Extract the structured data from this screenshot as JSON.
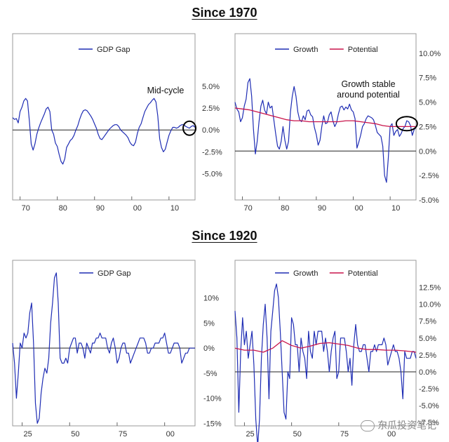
{
  "titles": {
    "top": "Since 1970",
    "bottom": "Since 1920"
  },
  "watermark": "东瓜投资笔记",
  "chart_data": [
    {
      "type": "line",
      "panel": "1970-gap",
      "legend": [
        "GDP Gap"
      ],
      "annotation": "Mid-cycle",
      "x_tick_labels": [
        "70",
        "80",
        "90",
        "00",
        "10"
      ],
      "x_ticks": [
        1970,
        1980,
        1990,
        2000,
        2010
      ],
      "xlim": [
        1968,
        2017
      ],
      "y_tick_labels": [
        "5.0%",
        "2.5%",
        "0.0%",
        "-2.5%",
        "-5.0%"
      ],
      "y_ticks": [
        5.0,
        2.5,
        0.0,
        -2.5,
        -5.0
      ],
      "ylim": [
        -8.0,
        11.0
      ],
      "zero_line": 0.0,
      "highlight": {
        "x": 2015.5,
        "y": 0.2
      },
      "series": [
        {
          "color": "#1f2db4",
          "x": [
            1968,
            1968.5,
            1969,
            1969.5,
            1970,
            1970.5,
            1971,
            1971.5,
            1972,
            1972.5,
            1973,
            1973.5,
            1974,
            1974.5,
            1975,
            1975.5,
            1976,
            1976.5,
            1977,
            1977.5,
            1978,
            1978.5,
            1979,
            1979.5,
            1980,
            1980.5,
            1981,
            1981.5,
            1982,
            1982.5,
            1983,
            1983.5,
            1984,
            1984.5,
            1985,
            1985.5,
            1986,
            1986.5,
            1987,
            1987.5,
            1988,
            1988.5,
            1989,
            1989.5,
            1990,
            1990.5,
            1991,
            1991.5,
            1992,
            1992.5,
            1993,
            1993.5,
            1994,
            1994.5,
            1995,
            1995.5,
            1996,
            1996.5,
            1997,
            1997.5,
            1998,
            1998.5,
            1999,
            1999.5,
            2000,
            2000.5,
            2001,
            2001.5,
            2002,
            2002.5,
            2003,
            2003.5,
            2004,
            2004.5,
            2005,
            2005.5,
            2006,
            2006.5,
            2007,
            2007.5,
            2008,
            2008.5,
            2009,
            2009.5,
            2010,
            2010.5,
            2011,
            2011.5,
            2012,
            2012.5,
            2013,
            2013.5,
            2014,
            2014.5,
            2015,
            2015.5,
            2016,
            2016.5,
            2017
          ],
          "y": [
            1.4,
            1.2,
            1.3,
            0.8,
            2.1,
            2.6,
            3.3,
            3.6,
            3.3,
            1.0,
            -1.6,
            -2.3,
            -1.6,
            -0.5,
            0.2,
            0.8,
            1.3,
            1.8,
            2.4,
            2.6,
            2.1,
            0.0,
            -0.5,
            -1.5,
            -1.9,
            -2.8,
            -3.6,
            -3.9,
            -3.3,
            -2.0,
            -1.6,
            -1.2,
            -1.0,
            -0.6,
            0.0,
            0.5,
            1.2,
            1.8,
            2.2,
            2.3,
            2.2,
            1.9,
            1.6,
            1.2,
            0.7,
            0.2,
            -0.5,
            -1.0,
            -1.1,
            -0.8,
            -0.5,
            -0.2,
            0.1,
            0.3,
            0.5,
            0.6,
            0.6,
            0.4,
            0.0,
            -0.2,
            -0.4,
            -0.6,
            -0.9,
            -1.4,
            -1.7,
            -1.8,
            -1.4,
            -0.4,
            0.3,
            0.7,
            1.4,
            2.1,
            2.5,
            2.9,
            3.1,
            3.4,
            3.6,
            3.2,
            1.6,
            -1.0,
            -2.0,
            -2.5,
            -2.2,
            -1.4,
            -0.6,
            -0.1,
            0.3,
            0.3,
            0.2,
            0.3,
            0.5,
            0.6,
            0.6,
            0.4,
            0.3,
            0.2,
            0.4,
            0.5,
            0.3
          ]
        }
      ]
    },
    {
      "type": "line",
      "panel": "1970-growth",
      "legend": [
        "Growth",
        "Potential"
      ],
      "annotation": "Growth stable\naround potential",
      "x_tick_labels": [
        "70",
        "80",
        "90",
        "00",
        "10"
      ],
      "x_ticks": [
        1970,
        1980,
        1990,
        2000,
        2010
      ],
      "xlim": [
        1968,
        2017
      ],
      "y_tick_labels": [
        "10.0%",
        "7.5%",
        "5.0%",
        "2.5%",
        "0.0%",
        "-2.5%",
        "-5.0%"
      ],
      "y_ticks": [
        10.0,
        7.5,
        5.0,
        2.5,
        0.0,
        -2.5,
        -5.0
      ],
      "ylim": [
        -5.0,
        12.0
      ],
      "zero_line": 0.0,
      "highlight": {
        "x": 2014.5,
        "y": 2.8
      },
      "series": [
        {
          "name": "Growth",
          "color": "#1f2db4",
          "x": [
            1968,
            1968.5,
            1969,
            1969.5,
            1970,
            1970.5,
            1971,
            1971.5,
            1972,
            1972.5,
            1973,
            1973.5,
            1974,
            1974.5,
            1975,
            1975.5,
            1976,
            1976.5,
            1977,
            1977.5,
            1978,
            1978.5,
            1979,
            1979.5,
            1980,
            1980.5,
            1981,
            1981.5,
            1982,
            1982.5,
            1983,
            1983.5,
            1984,
            1984.5,
            1985,
            1985.5,
            1986,
            1986.5,
            1987,
            1987.5,
            1988,
            1988.5,
            1989,
            1989.5,
            1990,
            1990.5,
            1991,
            1991.5,
            1992,
            1992.5,
            1993,
            1993.5,
            1994,
            1994.5,
            1995,
            1995.5,
            1996,
            1996.5,
            1997,
            1997.5,
            1998,
            1998.5,
            1999,
            1999.5,
            2000,
            2000.5,
            2001,
            2001.5,
            2002,
            2002.5,
            2003,
            2003.5,
            2004,
            2004.5,
            2005,
            2005.5,
            2006,
            2006.5,
            2007,
            2007.5,
            2008,
            2008.5,
            2009,
            2009.5,
            2010,
            2010.5,
            2011,
            2011.5,
            2012,
            2012.5,
            2013,
            2013.5,
            2014,
            2014.5,
            2015,
            2015.5,
            2016,
            2016.5,
            2017
          ],
          "y": [
            5.0,
            4.3,
            4.0,
            3.0,
            3.4,
            4.6,
            5.3,
            7.0,
            7.4,
            5.6,
            2.2,
            -0.3,
            1.0,
            3.0,
            4.6,
            5.2,
            4.2,
            3.8,
            5.0,
            4.4,
            4.6,
            3.2,
            1.8,
            0.5,
            0.2,
            1.0,
            2.5,
            1.1,
            0.2,
            1.0,
            4.0,
            5.6,
            6.6,
            5.6,
            4.0,
            3.2,
            3.0,
            3.6,
            3.2,
            4.1,
            4.2,
            3.7,
            3.5,
            2.4,
            1.7,
            0.6,
            1.1,
            2.5,
            3.6,
            2.8,
            2.9,
            3.7,
            4.0,
            3.1,
            2.5,
            2.9,
            3.8,
            4.5,
            4.6,
            4.2,
            4.5,
            4.3,
            4.8,
            4.2,
            4.0,
            3.3,
            0.3,
            0.9,
            1.6,
            2.5,
            2.8,
            3.3,
            3.6,
            3.5,
            3.4,
            3.2,
            2.6,
            1.9,
            1.7,
            1.5,
            0.5,
            -2.5,
            -3.2,
            -0.7,
            2.5,
            2.8,
            1.6,
            2.0,
            2.2,
            1.5,
            1.8,
            2.3,
            2.5,
            3.1,
            3.0,
            2.6,
            1.6,
            2.2,
            2.4
          ]
        },
        {
          "name": "Potential",
          "color": "#c8144b",
          "x": [
            1968,
            1970,
            1972,
            1974,
            1976,
            1978,
            1980,
            1982,
            1984,
            1986,
            1988,
            1990,
            1992,
            1994,
            1996,
            1998,
            2000,
            2002,
            2004,
            2006,
            2008,
            2010,
            2012,
            2014,
            2016,
            2017
          ],
          "y": [
            4.4,
            4.3,
            4.2,
            4.0,
            3.8,
            3.6,
            3.4,
            3.2,
            3.1,
            3.1,
            3.0,
            3.0,
            3.0,
            3.0,
            3.0,
            3.1,
            3.1,
            3.0,
            2.9,
            2.8,
            2.6,
            2.5,
            2.5,
            2.5,
            2.5,
            2.5
          ]
        }
      ]
    },
    {
      "type": "line",
      "panel": "1920-gap",
      "legend": [
        "GDP Gap"
      ],
      "x_tick_labels": [
        "25",
        "50",
        "75",
        "00"
      ],
      "x_ticks": [
        1925,
        1950,
        1975,
        2000
      ],
      "xlim": [
        1920,
        2016
      ],
      "y_tick_labels": [
        "10%",
        "5%",
        "0%",
        "-5%",
        "-10%",
        "-15%"
      ],
      "y_ticks": [
        10,
        5,
        0,
        -5,
        -10,
        -15
      ],
      "ylim": [
        -15.5,
        17.5
      ],
      "zero_line": 0,
      "series": [
        {
          "color": "#1f2db4",
          "x": [
            1920,
            1921,
            1922,
            1923,
            1924,
            1925,
            1926,
            1927,
            1928,
            1929,
            1930,
            1931,
            1932,
            1933,
            1934,
            1935,
            1936,
            1937,
            1938,
            1939,
            1940,
            1941,
            1942,
            1943,
            1944,
            1945,
            1946,
            1947,
            1948,
            1949,
            1950,
            1951,
            1952,
            1953,
            1954,
            1955,
            1956,
            1957,
            1958,
            1959,
            1960,
            1961,
            1962,
            1963,
            1964,
            1965,
            1966,
            1967,
            1968,
            1969,
            1970,
            1971,
            1972,
            1973,
            1974,
            1975,
            1976,
            1977,
            1978,
            1979,
            1980,
            1981,
            1982,
            1983,
            1984,
            1985,
            1986,
            1987,
            1988,
            1989,
            1990,
            1991,
            1992,
            1993,
            1994,
            1995,
            1996,
            1997,
            1998,
            1999,
            2000,
            2001,
            2002,
            2003,
            2004,
            2005,
            2006,
            2007,
            2008,
            2009,
            2010,
            2011,
            2012,
            2013,
            2014,
            2015,
            2016
          ],
          "y": [
            1,
            -3,
            -10,
            -5,
            1,
            0,
            3,
            2,
            3,
            7,
            9,
            1,
            -11,
            -15,
            -14,
            -9,
            -6,
            -4,
            -5,
            -2,
            5,
            9,
            14,
            15,
            9,
            -2,
            -3,
            -3,
            -2,
            -3,
            0,
            1,
            2,
            2,
            -1,
            1,
            1,
            0,
            -2,
            1,
            0,
            -1,
            1,
            1,
            2,
            2,
            3,
            2,
            2,
            2,
            0,
            -1,
            1,
            2,
            0,
            -3,
            -2,
            0,
            1,
            1,
            -1,
            -1,
            -3,
            -2,
            -1,
            0,
            1,
            2,
            2,
            2,
            1,
            -1,
            -1,
            0,
            0,
            1,
            1,
            1,
            2,
            2,
            3,
            1,
            -1,
            -1,
            0,
            1,
            1,
            1,
            0,
            -3,
            -2,
            -1,
            -1,
            0,
            0,
            0,
            0
          ]
        }
      ]
    },
    {
      "type": "line",
      "panel": "1920-growth",
      "legend": [
        "Growth",
        "Potential"
      ],
      "x_tick_labels": [
        "25",
        "50",
        "75",
        "00"
      ],
      "x_ticks": [
        1925,
        1950,
        1975,
        2000
      ],
      "xlim": [
        1920,
        2016
      ],
      "y_tick_labels": [
        "12.5%",
        "10.0%",
        "7.5%",
        "5.0%",
        "2.5%",
        "0.0%",
        "-2.5%",
        "-5.0%",
        "-7.5%"
      ],
      "y_ticks": [
        12.5,
        10.0,
        7.5,
        5.0,
        2.5,
        0.0,
        -2.5,
        -5.0,
        -7.5
      ],
      "ylim": [
        -8.0,
        16.5
      ],
      "zero_line": 0.0,
      "series": [
        {
          "name": "Growth",
          "color": "#1f2db4",
          "x": [
            1920,
            1921,
            1922,
            1923,
            1924,
            1925,
            1926,
            1927,
            1928,
            1929,
            1930,
            1931,
            1932,
            1933,
            1934,
            1935,
            1936,
            1937,
            1938,
            1939,
            1940,
            1941,
            1942,
            1943,
            1944,
            1945,
            1946,
            1947,
            1948,
            1949,
            1950,
            1951,
            1952,
            1953,
            1954,
            1955,
            1956,
            1957,
            1958,
            1959,
            1960,
            1961,
            1962,
            1963,
            1964,
            1965,
            1966,
            1967,
            1968,
            1969,
            1970,
            1971,
            1972,
            1973,
            1974,
            1975,
            1976,
            1977,
            1978,
            1979,
            1980,
            1981,
            1982,
            1983,
            1984,
            1985,
            1986,
            1987,
            1988,
            1989,
            1990,
            1991,
            1992,
            1993,
            1994,
            1995,
            1996,
            1997,
            1998,
            1999,
            2000,
            2001,
            2002,
            2003,
            2004,
            2005,
            2006,
            2007,
            2008,
            2009,
            2010,
            2011,
            2012,
            2013,
            2014,
            2015,
            2016
          ],
          "y": [
            9,
            5,
            -6,
            3,
            8,
            4,
            6,
            2,
            4,
            6,
            1,
            -7,
            -11,
            -7,
            2,
            7,
            10,
            5,
            -4,
            6,
            9,
            12,
            13,
            11,
            6,
            0,
            -6,
            -7,
            0,
            -1,
            8,
            7,
            4,
            4,
            0,
            5,
            3,
            2,
            -1,
            6,
            3,
            2,
            6,
            4,
            6,
            6,
            6,
            3,
            5,
            3,
            0,
            3,
            5,
            6,
            -1,
            0,
            5,
            5,
            5,
            3,
            0,
            2,
            -2,
            4,
            7,
            4,
            3,
            3,
            4,
            4,
            2,
            0,
            3,
            3,
            4,
            3,
            4,
            4,
            4,
            5,
            4,
            1,
            2,
            3,
            4,
            3,
            3,
            2,
            0,
            -4,
            3,
            2,
            2,
            2,
            3,
            3,
            2
          ]
        },
        {
          "name": "Potential",
          "color": "#c8144b",
          "x": [
            1920,
            1925,
            1930,
            1935,
            1940,
            1945,
            1950,
            1955,
            1960,
            1965,
            1970,
            1975,
            1980,
            1985,
            1990,
            1995,
            2000,
            2005,
            2010,
            2016
          ],
          "y": [
            3.5,
            3.2,
            3.2,
            2.9,
            3.5,
            4.6,
            3.9,
            3.5,
            3.8,
            4.2,
            4.3,
            4.1,
            3.9,
            3.5,
            3.3,
            3.3,
            3.2,
            3.2,
            3.1,
            2.9
          ]
        }
      ]
    }
  ]
}
